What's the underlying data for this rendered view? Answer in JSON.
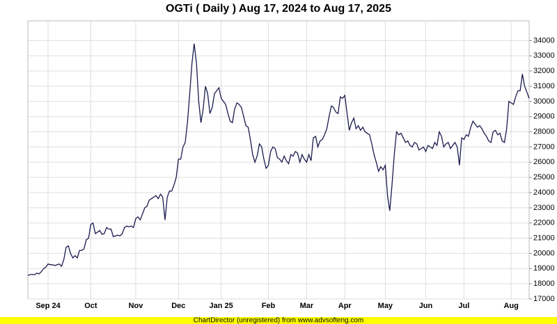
{
  "chart_data": {
    "type": "line",
    "title": "OGTi ( Daily ) Aug 17, 2024 to Aug 17, 2025",
    "credit": "ChartDirector (unregistered) from www.advsofteng.com",
    "color": "#1a1a4e",
    "grid": true,
    "ylim": [
      17000,
      35300
    ],
    "yticks": [
      17000,
      18000,
      19000,
      20000,
      21000,
      22000,
      23000,
      24000,
      25000,
      26000,
      27000,
      28000,
      29000,
      30000,
      31000,
      32000,
      33000,
      34000
    ],
    "categories": [
      null,
      null,
      null,
      null,
      null,
      null,
      null,
      null,
      null,
      "Sep 24",
      null,
      null,
      null,
      null,
      null,
      null,
      null,
      null,
      null,
      null,
      null,
      null,
      null,
      null,
      null,
      null,
      null,
      null,
      "Oct",
      null,
      null,
      null,
      null,
      null,
      null,
      null,
      null,
      null,
      null,
      null,
      null,
      null,
      null,
      null,
      null,
      null,
      null,
      null,
      "Nov",
      null,
      null,
      null,
      null,
      null,
      null,
      null,
      null,
      null,
      null,
      null,
      null,
      null,
      null,
      null,
      null,
      null,
      null,
      "Dec",
      null,
      null,
      null,
      null,
      null,
      null,
      null,
      null,
      null,
      null,
      null,
      null,
      null,
      null,
      null,
      null,
      null,
      null,
      "Jan 25",
      null,
      null,
      null,
      null,
      null,
      null,
      null,
      null,
      null,
      null,
      null,
      null,
      null,
      null,
      null,
      null,
      null,
      null,
      null,
      null,
      "Feb",
      null,
      null,
      null,
      null,
      null,
      null,
      null,
      null,
      null,
      null,
      null,
      null,
      null,
      null,
      null,
      null,
      "Mar",
      null,
      null,
      null,
      null,
      null,
      null,
      null,
      null,
      null,
      null,
      null,
      null,
      null,
      null,
      null,
      null,
      "Apr",
      null,
      null,
      null,
      null,
      null,
      null,
      null,
      null,
      null,
      null,
      null,
      null,
      null,
      null,
      null,
      null,
      null,
      "May",
      null,
      null,
      null,
      null,
      null,
      null,
      null,
      null,
      null,
      null,
      null,
      null,
      null,
      null,
      null,
      null,
      null,
      "Jun",
      null,
      null,
      null,
      null,
      null,
      null,
      null,
      null,
      null,
      null,
      null,
      null,
      null,
      null,
      null,
      null,
      "Jul",
      null,
      null,
      null,
      null,
      null,
      null,
      null,
      null,
      null,
      null,
      null,
      null,
      null,
      null,
      null,
      null,
      null,
      null,
      null,
      null,
      "Aug",
      null,
      null,
      null,
      null,
      null,
      null,
      null,
      null
    ],
    "values": [
      18550,
      18600,
      18620,
      18600,
      18700,
      18650,
      18800,
      19000,
      19100,
      19300,
      19250,
      19250,
      19200,
      19250,
      19300,
      19150,
      19600,
      20400,
      20500,
      20000,
      19700,
      19850,
      19700,
      20200,
      20200,
      20300,
      20900,
      21000,
      21900,
      22000,
      21300,
      21400,
      21500,
      21250,
      21300,
      21700,
      21600,
      21600,
      21100,
      21150,
      21200,
      21150,
      21300,
      21700,
      21800,
      21750,
      21800,
      21700,
      22300,
      22400,
      22200,
      22600,
      23000,
      23100,
      23500,
      23600,
      23700,
      23800,
      23600,
      23900,
      23700,
      22200,
      23700,
      24100,
      24100,
      24500,
      25000,
      26200,
      26200,
      27000,
      27300,
      28600,
      30500,
      32500,
      33800,
      32500,
      30000,
      28600,
      29500,
      31000,
      30500,
      29200,
      29600,
      30500,
      30700,
      30900,
      30200,
      30000,
      29800,
      29200,
      28700,
      28600,
      29500,
      29900,
      29800,
      29600,
      29000,
      28400,
      28300,
      27500,
      26500,
      26000,
      26400,
      27200,
      27000,
      26200,
      25600,
      25800,
      26700,
      27000,
      26900,
      26300,
      26200,
      26000,
      26400,
      26100,
      25900,
      26500,
      26400,
      26700,
      26600,
      26000,
      26500,
      26200,
      26000,
      26500,
      26100,
      27600,
      27700,
      27000,
      27400,
      27500,
      27800,
      28200,
      29000,
      29700,
      29600,
      29300,
      29200,
      30300,
      30200,
      30400,
      29200,
      28100,
      28600,
      28900,
      28200,
      28400,
      28100,
      28300,
      28000,
      27900,
      27800,
      27200,
      26500,
      26000,
      25400,
      25700,
      25500,
      25800,
      23800,
      22800,
      24500,
      26500,
      28000,
      27800,
      27900,
      27600,
      27300,
      27400,
      27100,
      27000,
      27300,
      27200,
      26800,
      26900,
      27000,
      26700,
      27100,
      27000,
      26900,
      27300,
      27100,
      28000,
      27700,
      27000,
      27200,
      27300,
      26900,
      27100,
      27300,
      27000,
      25800,
      27600,
      27500,
      27800,
      27700,
      28300,
      28700,
      28500,
      28300,
      28400,
      28200,
      27900,
      27700,
      27400,
      27300,
      28000,
      28100,
      27800,
      27900,
      27400,
      27300,
      28200,
      30000,
      29900,
      29800,
      30300,
      30700,
      30700,
      31800,
      31000,
      30600,
      30200
    ]
  }
}
